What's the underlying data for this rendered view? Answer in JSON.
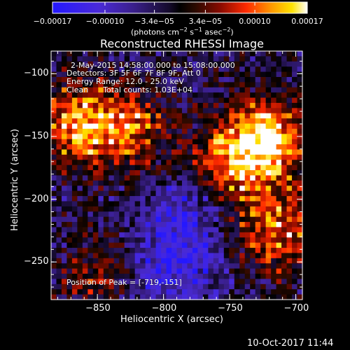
{
  "chart_data": {
    "type": "heatmap",
    "title": "Reconstructed RHESSI Image",
    "xlabel": "Heliocentric X (arcsec)",
    "ylabel": "Heliocentric Y (arcsec)",
    "xlim": [
      -885,
      -695
    ],
    "ylim": [
      -280,
      -82
    ],
    "xticks": [
      -850,
      -800,
      -750,
      -700
    ],
    "yticks": [
      -100,
      -150,
      -200,
      -250
    ],
    "xtick_labels": [
      "−850",
      "−800",
      "−750",
      "−700"
    ],
    "ytick_labels": [
      "−100",
      "−150",
      "−200",
      "−250"
    ],
    "colorbar": {
      "range": [
        -0.00017,
        0.00017
      ],
      "ticks": [
        -0.00017,
        -0.0001,
        -3.4e-05,
        3.4e-05,
        0.0001,
        0.00017
      ],
      "tick_labels": [
        "−0.00017",
        "−0.00010",
        "−3.4e−05",
        "3.4e−05",
        "0.00010",
        "0.00017"
      ],
      "units_prefix": "(photons cm",
      "units_sup1": "−2",
      "units_mid1": " s",
      "units_sup2": "−1",
      "units_mid2": " asec",
      "units_sup3": "−2",
      "units_suffix": ")",
      "colormap": "blue-purple-black-red-yellow-white"
    },
    "annotations": {
      "time_range": "2-May-2015 14:58:00.000 to 15:08:00.000",
      "detectors": "Detectors: 3F 5F 6F 7F 8F 9F, Att 0",
      "energy_range": "Energy Range: 12.0 - 25.0 keV",
      "clean_counts": "Clean      Total counts: 1.03E+04",
      "peak": "Position of Peak = [-719,-151]"
    },
    "peak_position": [
      -719,
      -151
    ],
    "grid": false,
    "description_hint_regions": [
      {
        "center": [
          -865,
          -140
        ],
        "intensity": 0.00014
      },
      {
        "center": [
          -829,
          -145
        ],
        "intensity": 0.00012
      },
      {
        "center": [
          -841,
          -262
        ],
        "intensity": 0.00011
      },
      {
        "center": [
          -745,
          -170
        ],
        "intensity": 0.00015
      },
      {
        "center": [
          -719,
          -151
        ],
        "intensity": 0.00017
      },
      {
        "center": [
          -715,
          -225
        ],
        "intensity": 0.00013
      },
      {
        "center": [
          -790,
          -215
        ],
        "intensity": -8e-05
      },
      {
        "center": [
          -815,
          -265
        ],
        "intensity": -0.0001
      },
      {
        "center": [
          -780,
          -250
        ],
        "intensity": -6e-05
      }
    ]
  },
  "footer": {
    "timestamp": "10-Oct-2017 11:44"
  }
}
